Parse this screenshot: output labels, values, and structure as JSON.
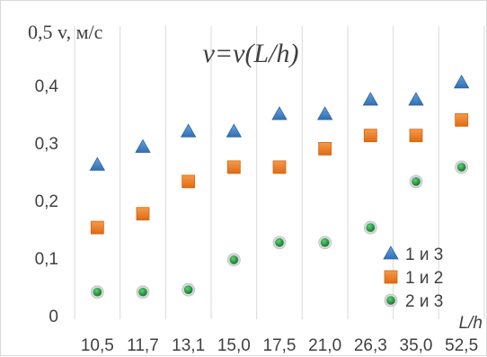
{
  "chart_data": {
    "type": "scatter",
    "title": "v=v(L/h)",
    "xlabel": "L/h",
    "ylabel": "0,5 v, м/с",
    "categories": [
      "10,5",
      "11,7",
      "13,1",
      "15,0",
      "17,5",
      "21,0",
      "26,3",
      "35,0",
      "52,5"
    ],
    "y_ticks": [
      "0",
      "0,1",
      "0,2",
      "0,3",
      "0,4"
    ],
    "ylim": [
      0,
      0.5
    ],
    "grid": "vertical",
    "legend_position": "right",
    "series": [
      {
        "name": "1 и 3",
        "marker": "triangle",
        "color": "#4a86c8",
        "values": [
          0.262,
          0.293,
          0.32,
          0.32,
          0.35,
          0.35,
          0.375,
          0.375,
          0.405
        ]
      },
      {
        "name": "1 и 2",
        "marker": "square",
        "color": "#f07c26",
        "values": [
          0.153,
          0.177,
          0.233,
          0.258,
          0.258,
          0.29,
          0.313,
          0.313,
          0.34
        ]
      },
      {
        "name": "2 и 3",
        "marker": "circle",
        "color": "#1a9e3c",
        "values": [
          0.041,
          0.041,
          0.045,
          0.097,
          0.127,
          0.127,
          0.153,
          0.233,
          0.258
        ]
      }
    ]
  }
}
